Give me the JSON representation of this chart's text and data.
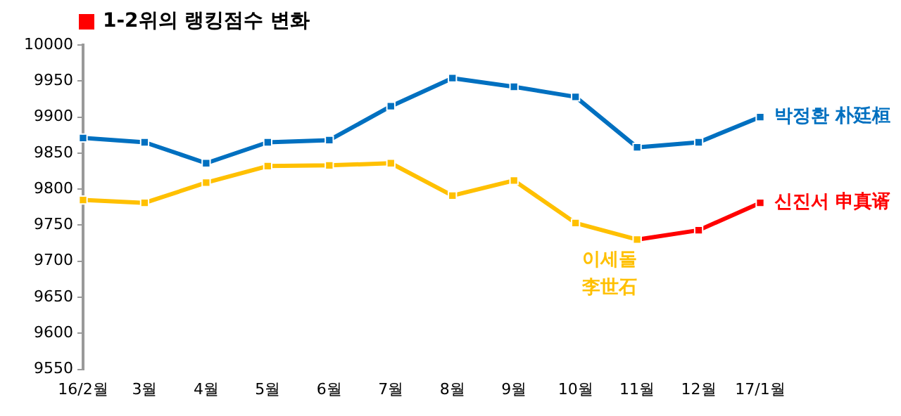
{
  "chart_data": {
    "type": "line",
    "title": "1-2위의 랭킹점수 변화",
    "categories": [
      "16/2월",
      "3월",
      "4월",
      "5월",
      "6월",
      "7월",
      "8월",
      "9월",
      "10월",
      "11월",
      "12월",
      "17/1월"
    ],
    "series": [
      {
        "name": "박정환 朴廷桓",
        "color": "#0070c0",
        "values": [
          9871,
          9865,
          9836,
          9865,
          9868,
          9915,
          9954,
          9942,
          9928,
          9858,
          9865,
          9900
        ]
      },
      {
        "name": "이세돌 李世石",
        "color": "#ffc000",
        "values": [
          9785,
          9781,
          9809,
          9832,
          9833,
          9836,
          9791,
          9812,
          9753,
          9730,
          null,
          null
        ]
      },
      {
        "name": "신진서 申真谞",
        "color": "#ff0000",
        "values": [
          null,
          null,
          null,
          null,
          null,
          null,
          null,
          null,
          null,
          9730,
          9743,
          9781
        ]
      }
    ],
    "ylim": [
      9550,
      10000
    ],
    "yticks": [
      9550,
      9600,
      9650,
      9700,
      9750,
      9800,
      9850,
      9900,
      9950,
      10000
    ],
    "grid": false,
    "legend": false,
    "marker": "square",
    "line_style": "solid"
  }
}
